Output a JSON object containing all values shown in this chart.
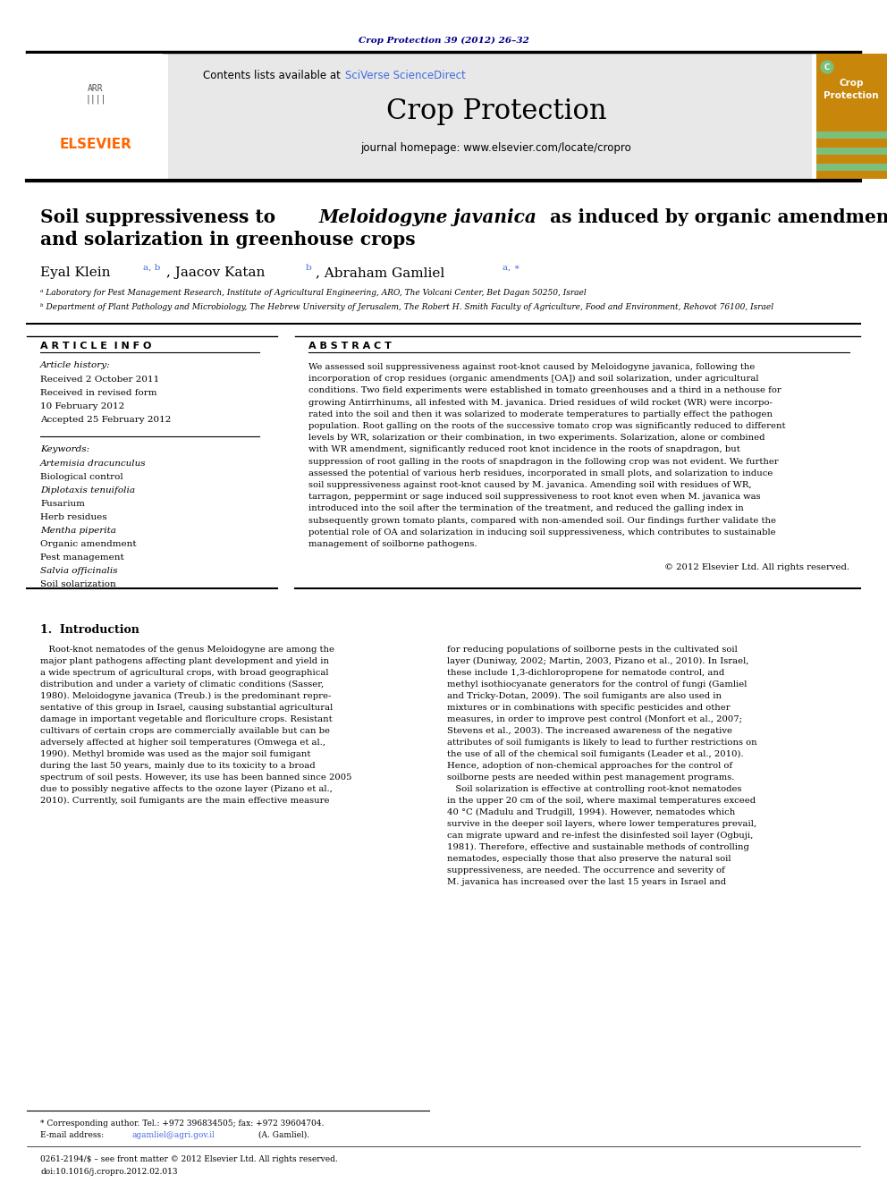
{
  "journal_ref": "Crop Protection 39 (2012) 26–32",
  "journal_ref_color": "#00008B",
  "contents_text": "Contents lists available at ",
  "sciverse_text": "SciVerse ScienceDirect",
  "sciverse_color": "#4169E1",
  "journal_name": "Crop Protection",
  "journal_homepage": "journal homepage: www.elsevier.com/locate/cropro",
  "header_bg": "#E8E8E8",
  "crop_protection_badge_bg": "#C8860A",
  "title_part1": "Soil suppressiveness to ",
  "title_italic": "Meloidogyne javanica",
  "title_part2": " as induced by organic amendments",
  "title_line2": "and solarization in greenhouse crops",
  "affil_a": "ᵃ Laboratory for Pest Management Research, Institute of Agricultural Engineering, ARO, The Volcani Center, Bet Dagan 50250, Israel",
  "affil_b": "ᵇ Department of Plant Pathology and Microbiology, The Hebrew University of Jerusalem, The Robert H. Smith Faculty of Agriculture, Food and Environment, Rehovot 76100, Israel",
  "article_info_header": "A R T I C L E  I N F O",
  "abstract_header": "A B S T R A C T",
  "article_history_label": "Article history:",
  "article_history_lines": [
    "Received 2 October 2011",
    "Received in revised form",
    "10 February 2012",
    "Accepted 25 February 2012"
  ],
  "keywords_label": "Keywords:",
  "keywords": [
    "Artemisia dracunculus",
    "Biological control",
    "Diplotaxis tenuifolia",
    "Fusarium",
    "Herb residues",
    "Mentha piperita",
    "Organic amendment",
    "Pest management",
    "Salvia officinalis",
    "Soil solarization"
  ],
  "keywords_italic": [
    "Artemisia dracunculus",
    "Diplotaxis tenuifolia",
    "Mentha piperita",
    "Salvia officinalis"
  ],
  "abstract_lines": [
    "We assessed soil suppressiveness against root-knot caused by Meloidogyne javanica, following the",
    "incorporation of crop residues (organic amendments [OA]) and soil solarization, under agricultural",
    "conditions. Two field experiments were established in tomato greenhouses and a third in a nethouse for",
    "growing Antirrhinums, all infested with M. javanica. Dried residues of wild rocket (WR) were incorpo-",
    "rated into the soil and then it was solarized to moderate temperatures to partially effect the pathogen",
    "population. Root galling on the roots of the successive tomato crop was significantly reduced to different",
    "levels by WR, solarization or their combination, in two experiments. Solarization, alone or combined",
    "with WR amendment, significantly reduced root knot incidence in the roots of snapdragon, but",
    "suppression of root galling in the roots of snapdragon in the following crop was not evident. We further",
    "assessed the potential of various herb residues, incorporated in small plots, and solarization to induce",
    "soil suppressiveness against root-knot caused by M. javanica. Amending soil with residues of WR,",
    "tarragon, peppermint or sage induced soil suppressiveness to root knot even when M. javanica was",
    "introduced into the soil after the termination of the treatment, and reduced the galling index in",
    "subsequently grown tomato plants, compared with non-amended soil. Our findings further validate the",
    "potential role of OA and solarization in inducing soil suppressiveness, which contributes to sustainable",
    "management of soilborne pathogens."
  ],
  "copyright_text": "© 2012 Elsevier Ltd. All rights reserved.",
  "section1_header": "1.  Introduction",
  "intro_left_lines": [
    "   Root-knot nematodes of the genus Meloidogyne are among the",
    "major plant pathogens affecting plant development and yield in",
    "a wide spectrum of agricultural crops, with broad geographical",
    "distribution and under a variety of climatic conditions (Sasser,",
    "1980). Meloidogyne javanica (Treub.) is the predominant repre-",
    "sentative of this group in Israel, causing substantial agricultural",
    "damage in important vegetable and floriculture crops. Resistant",
    "cultivars of certain crops are commercially available but can be",
    "adversely affected at higher soil temperatures (Omwega et al.,",
    "1990). Methyl bromide was used as the major soil fumigant",
    "during the last 50 years, mainly due to its toxicity to a broad",
    "spectrum of soil pests. However, its use has been banned since 2005",
    "due to possibly negative affects to the ozone layer (Pizano et al.,",
    "2010). Currently, soil fumigants are the main effective measure"
  ],
  "intro_right_lines": [
    "for reducing populations of soilborne pests in the cultivated soil",
    "layer (Duniway, 2002; Martin, 2003, Pizano et al., 2010). In Israel,",
    "these include 1,3-dichloropropene for nematode control, and",
    "methyl isothiocyanate generators for the control of fungi (Gamliel",
    "and Tricky-Dotan, 2009). The soil fumigants are also used in",
    "mixtures or in combinations with specific pesticides and other",
    "measures, in order to improve pest control (Monfort et al., 2007;",
    "Stevens et al., 2003). The increased awareness of the negative",
    "attributes of soil fumigants is likely to lead to further restrictions on",
    "the use of all of the chemical soil fumigants (Leader et al., 2010).",
    "Hence, adoption of non-chemical approaches for the control of",
    "soilborne pests are needed within pest management programs.",
    "   Soil solarization is effective at controlling root-knot nematodes",
    "in the upper 20 cm of the soil, where maximal temperatures exceed",
    "40 °C (Madulu and Trudgill, 1994). However, nematodes which",
    "survive in the deeper soil layers, where lower temperatures prevail,",
    "can migrate upward and re-infest the disinfested soil layer (Ogbuji,",
    "1981). Therefore, effective and sustainable methods of controlling",
    "nematodes, especially those that also preserve the natural soil",
    "suppressiveness, are needed. The occurrence and severity of",
    "M. javanica has increased over the last 15 years in Israel and"
  ],
  "footnote_star": "* Corresponding author. Tel.: +972 396834505; fax: +972 39604704.",
  "footnote_email_pre": "E-mail address: ",
  "footnote_email_link": "agamliel@agri.gov.il",
  "footnote_email_post": " (A. Gamliel).",
  "footnote_issn": "0261-2194/$ – see front matter © 2012 Elsevier Ltd. All rights reserved.",
  "footnote_doi": "doi:10.1016/j.cropro.2012.02.013",
  "bg_color": "#FFFFFF",
  "text_color": "#000000",
  "link_color": "#4169E1"
}
